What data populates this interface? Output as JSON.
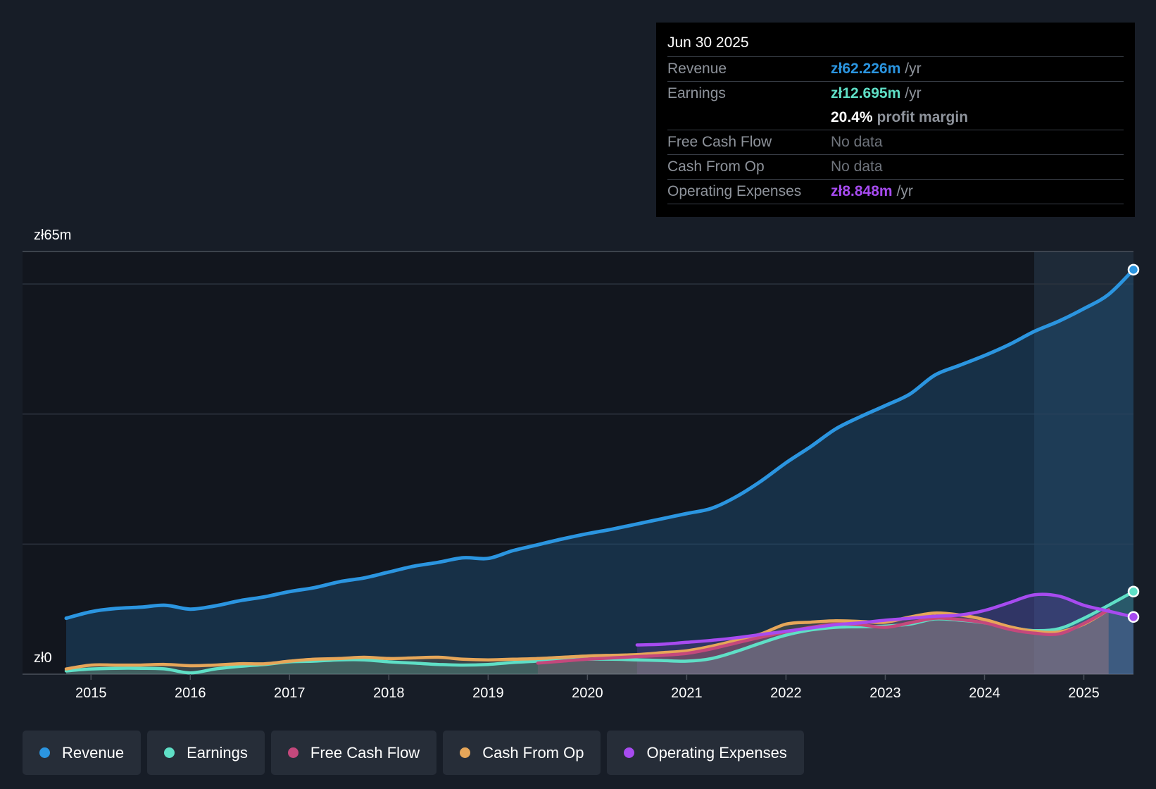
{
  "chart_data": {
    "type": "line",
    "title": "",
    "currency_unit": "zł",
    "y_top_label": "zł65m",
    "y_bottom_label": "zł0",
    "ylim": [
      0,
      65
    ],
    "xlim": [
      2014.3,
      2025.5
    ],
    "x_tick_labels": [
      "2015",
      "2016",
      "2017",
      "2018",
      "2019",
      "2020",
      "2021",
      "2022",
      "2023",
      "2024",
      "2025"
    ],
    "x_ticks": [
      2015,
      2016,
      2017,
      2018,
      2019,
      2020,
      2021,
      2022,
      2023,
      2024,
      2025
    ],
    "gridlines": [
      20,
      40,
      60,
      65
    ],
    "highlight_range": [
      2024.5,
      2025.5
    ],
    "series": [
      {
        "name": "Revenue",
        "color": "#2b95e0",
        "points": [
          [
            2014.75,
            8.6
          ],
          [
            2015.0,
            9.6
          ],
          [
            2015.25,
            10.1
          ],
          [
            2015.5,
            10.3
          ],
          [
            2015.75,
            10.6
          ],
          [
            2016.0,
            10.0
          ],
          [
            2016.25,
            10.5
          ],
          [
            2016.5,
            11.3
          ],
          [
            2016.75,
            11.9
          ],
          [
            2017.0,
            12.7
          ],
          [
            2017.25,
            13.3
          ],
          [
            2017.5,
            14.2
          ],
          [
            2017.75,
            14.8
          ],
          [
            2018.0,
            15.7
          ],
          [
            2018.25,
            16.6
          ],
          [
            2018.5,
            17.2
          ],
          [
            2018.75,
            17.9
          ],
          [
            2019.0,
            17.8
          ],
          [
            2019.25,
            19.0
          ],
          [
            2019.5,
            19.9
          ],
          [
            2019.75,
            20.8
          ],
          [
            2020.0,
            21.6
          ],
          [
            2020.25,
            22.3
          ],
          [
            2020.5,
            23.1
          ],
          [
            2020.75,
            23.9
          ],
          [
            2021.0,
            24.7
          ],
          [
            2021.25,
            25.5
          ],
          [
            2021.5,
            27.3
          ],
          [
            2021.75,
            29.7
          ],
          [
            2022.0,
            32.5
          ],
          [
            2022.25,
            35.0
          ],
          [
            2022.5,
            37.7
          ],
          [
            2022.75,
            39.6
          ],
          [
            2023.0,
            41.3
          ],
          [
            2023.25,
            43.1
          ],
          [
            2023.5,
            46.0
          ],
          [
            2023.75,
            47.5
          ],
          [
            2024.0,
            49.0
          ],
          [
            2024.25,
            50.7
          ],
          [
            2024.5,
            52.7
          ],
          [
            2024.75,
            54.3
          ],
          [
            2025.0,
            56.2
          ],
          [
            2025.25,
            58.4
          ],
          [
            2025.5,
            62.2
          ]
        ]
      },
      {
        "name": "Earnings",
        "color": "#5fdfc6",
        "points": [
          [
            2014.75,
            0.5
          ],
          [
            2015.0,
            0.8
          ],
          [
            2015.25,
            0.9
          ],
          [
            2015.5,
            0.9
          ],
          [
            2015.75,
            0.8
          ],
          [
            2016.0,
            0.2
          ],
          [
            2016.25,
            0.8
          ],
          [
            2016.5,
            1.2
          ],
          [
            2016.75,
            1.5
          ],
          [
            2017.0,
            1.9
          ],
          [
            2017.25,
            2.0
          ],
          [
            2017.5,
            2.2
          ],
          [
            2017.75,
            2.2
          ],
          [
            2018.0,
            1.9
          ],
          [
            2018.25,
            1.7
          ],
          [
            2018.5,
            1.5
          ],
          [
            2018.75,
            1.4
          ],
          [
            2019.0,
            1.5
          ],
          [
            2019.25,
            1.8
          ],
          [
            2019.5,
            2.0
          ],
          [
            2019.75,
            2.2
          ],
          [
            2020.0,
            2.3
          ],
          [
            2020.25,
            2.3
          ],
          [
            2020.5,
            2.2
          ],
          [
            2020.75,
            2.1
          ],
          [
            2021.0,
            2.0
          ],
          [
            2021.25,
            2.4
          ],
          [
            2021.5,
            3.5
          ],
          [
            2021.75,
            4.8
          ],
          [
            2022.0,
            6.0
          ],
          [
            2022.25,
            6.8
          ],
          [
            2022.5,
            7.2
          ],
          [
            2022.75,
            7.3
          ],
          [
            2023.0,
            7.4
          ],
          [
            2023.25,
            7.7
          ],
          [
            2023.5,
            8.5
          ],
          [
            2023.75,
            8.3
          ],
          [
            2024.0,
            7.9
          ],
          [
            2024.25,
            7.2
          ],
          [
            2024.5,
            6.7
          ],
          [
            2024.75,
            7.0
          ],
          [
            2025.0,
            8.6
          ],
          [
            2025.25,
            10.6
          ],
          [
            2025.5,
            12.7
          ]
        ]
      },
      {
        "name": "Free Cash Flow",
        "color": "#c4487c",
        "points": [
          [
            2019.5,
            1.7
          ],
          [
            2019.75,
            2.0
          ],
          [
            2020.0,
            2.3
          ],
          [
            2020.25,
            2.5
          ],
          [
            2020.5,
            2.7
          ],
          [
            2020.75,
            2.9
          ],
          [
            2021.0,
            3.2
          ],
          [
            2021.25,
            3.9
          ],
          [
            2021.5,
            4.8
          ],
          [
            2021.75,
            5.7
          ],
          [
            2022.0,
            6.5
          ],
          [
            2022.25,
            7.2
          ],
          [
            2022.5,
            7.7
          ],
          [
            2022.75,
            7.6
          ],
          [
            2023.0,
            7.2
          ],
          [
            2023.25,
            7.9
          ],
          [
            2023.5,
            8.6
          ],
          [
            2023.75,
            8.4
          ],
          [
            2024.0,
            7.9
          ],
          [
            2024.25,
            6.9
          ],
          [
            2024.5,
            6.3
          ],
          [
            2024.75,
            6.2
          ],
          [
            2025.0,
            7.8
          ],
          [
            2025.25,
            9.9
          ]
        ]
      },
      {
        "name": "Cash From Op",
        "color": "#e6a659",
        "points": [
          [
            2014.75,
            0.8
          ],
          [
            2015.0,
            1.4
          ],
          [
            2015.25,
            1.4
          ],
          [
            2015.5,
            1.4
          ],
          [
            2015.75,
            1.5
          ],
          [
            2016.0,
            1.3
          ],
          [
            2016.25,
            1.4
          ],
          [
            2016.5,
            1.6
          ],
          [
            2016.75,
            1.6
          ],
          [
            2017.0,
            2.0
          ],
          [
            2017.25,
            2.3
          ],
          [
            2017.5,
            2.4
          ],
          [
            2017.75,
            2.6
          ],
          [
            2018.0,
            2.4
          ],
          [
            2018.25,
            2.5
          ],
          [
            2018.5,
            2.6
          ],
          [
            2018.75,
            2.3
          ],
          [
            2019.0,
            2.2
          ],
          [
            2019.25,
            2.3
          ],
          [
            2019.5,
            2.4
          ],
          [
            2019.75,
            2.6
          ],
          [
            2020.0,
            2.8
          ],
          [
            2020.25,
            2.9
          ],
          [
            2020.5,
            3.0
          ],
          [
            2020.75,
            3.3
          ],
          [
            2021.0,
            3.6
          ],
          [
            2021.25,
            4.3
          ],
          [
            2021.5,
            5.2
          ],
          [
            2021.75,
            6.2
          ],
          [
            2022.0,
            7.7
          ],
          [
            2022.25,
            8.0
          ],
          [
            2022.5,
            8.2
          ],
          [
            2022.75,
            8.1
          ],
          [
            2023.0,
            8.0
          ],
          [
            2023.25,
            8.8
          ],
          [
            2023.5,
            9.4
          ],
          [
            2023.75,
            9.1
          ],
          [
            2024.0,
            8.4
          ],
          [
            2024.25,
            7.3
          ],
          [
            2024.5,
            6.6
          ],
          [
            2024.75,
            6.5
          ],
          [
            2025.0,
            7.7
          ],
          [
            2025.25,
            9.9
          ]
        ]
      },
      {
        "name": "Operating Expenses",
        "color": "#a74bf0",
        "points": [
          [
            2020.5,
            4.5
          ],
          [
            2020.75,
            4.6
          ],
          [
            2021.0,
            4.9
          ],
          [
            2021.25,
            5.2
          ],
          [
            2021.5,
            5.6
          ],
          [
            2021.75,
            6.1
          ],
          [
            2022.0,
            6.6
          ],
          [
            2022.25,
            7.1
          ],
          [
            2022.5,
            7.6
          ],
          [
            2022.75,
            7.9
          ],
          [
            2023.0,
            8.3
          ],
          [
            2023.25,
            8.6
          ],
          [
            2023.5,
            8.9
          ],
          [
            2023.75,
            9.1
          ],
          [
            2024.0,
            9.8
          ],
          [
            2024.25,
            11.0
          ],
          [
            2024.5,
            12.2
          ],
          [
            2024.75,
            12.0
          ],
          [
            2025.0,
            10.6
          ],
          [
            2025.25,
            9.7
          ],
          [
            2025.5,
            8.8
          ]
        ]
      }
    ]
  },
  "tooltip": {
    "date": "Jun 30 2025",
    "revenue_label": "Revenue",
    "revenue_value": "zł62.226m",
    "revenue_unit": "/yr",
    "earnings_label": "Earnings",
    "earnings_value": "zł12.695m",
    "earnings_unit": "/yr",
    "margin_value": "20.4%",
    "margin_text": "profit margin",
    "fcf_label": "Free Cash Flow",
    "fcf_value": "No data",
    "cfo_label": "Cash From Op",
    "cfo_value": "No data",
    "opex_label": "Operating Expenses",
    "opex_value": "zł8.848m",
    "opex_unit": "/yr"
  },
  "legend": [
    {
      "label": "Revenue",
      "color": "#2b95e0"
    },
    {
      "label": "Earnings",
      "color": "#5fdfc6"
    },
    {
      "label": "Free Cash Flow",
      "color": "#c4487c"
    },
    {
      "label": "Cash From Op",
      "color": "#e6a659"
    },
    {
      "label": "Operating Expenses",
      "color": "#a74bf0"
    }
  ],
  "colors": {
    "background": "#171d27",
    "plot_background": "#12161e",
    "revenue_area": "#153048"
  }
}
